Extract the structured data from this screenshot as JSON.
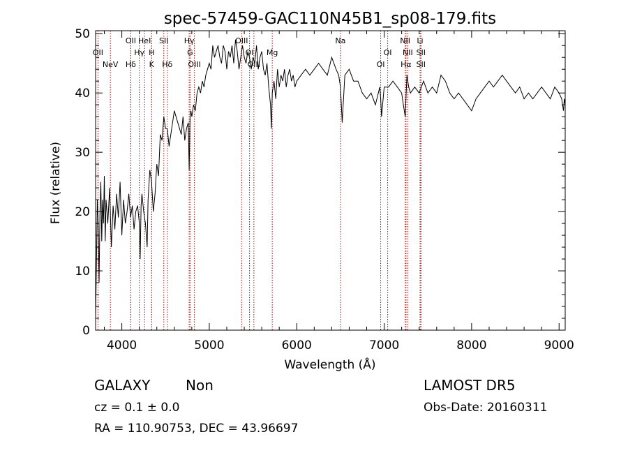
{
  "info": {
    "classification": "GALAXY",
    "subclass": "Non",
    "survey": "LAMOST DR5",
    "redshift": "cz = 0.1 ± 0.0",
    "obs_date": "Obs-Date: 20160311",
    "coords": "RA = 110.90753, DEC =  43.96697"
  },
  "chart_data": {
    "type": "line",
    "title": "spec-57459-GAC110N45B1_sp08-179.fits",
    "xlabel": "Wavelength (Å)",
    "ylabel": "Flux (relative)",
    "xlim": [
      3700,
      9070
    ],
    "ylim": [
      0,
      50.5
    ],
    "xticks": [
      4000,
      5000,
      6000,
      7000,
      8000,
      9000
    ],
    "yticks": [
      0,
      10,
      20,
      30,
      40,
      50
    ],
    "line_color": "#000000",
    "marker_color": "#a01010",
    "spectrum": {
      "x": [
        3700,
        3710,
        3720,
        3730,
        3740,
        3750,
        3760,
        3770,
        3780,
        3790,
        3800,
        3810,
        3820,
        3840,
        3860,
        3880,
        3900,
        3920,
        3940,
        3960,
        3980,
        4000,
        4020,
        4040,
        4060,
        4080,
        4100,
        4120,
        4140,
        4160,
        4180,
        4200,
        4210,
        4220,
        4230,
        4250,
        4270,
        4290,
        4300,
        4320,
        4340,
        4360,
        4380,
        4400,
        4420,
        4440,
        4460,
        4480,
        4500,
        4520,
        4540,
        4560,
        4580,
        4600,
        4620,
        4640,
        4660,
        4680,
        4700,
        4720,
        4740,
        4760,
        4770,
        4780,
        4790,
        4800,
        4820,
        4840,
        4860,
        4880,
        4900,
        4920,
        4940,
        4960,
        4980,
        5000,
        5020,
        5040,
        5060,
        5080,
        5100,
        5120,
        5140,
        5160,
        5180,
        5200,
        5220,
        5240,
        5260,
        5280,
        5300,
        5320,
        5340,
        5360,
        5380,
        5400,
        5420,
        5440,
        5460,
        5480,
        5500,
        5520,
        5540,
        5560,
        5580,
        5600,
        5620,
        5640,
        5660,
        5680,
        5700,
        5710,
        5720,
        5740,
        5760,
        5780,
        5800,
        5820,
        5840,
        5860,
        5880,
        5900,
        5920,
        5940,
        5960,
        5980,
        6000,
        6050,
        6100,
        6150,
        6200,
        6250,
        6300,
        6350,
        6400,
        6450,
        6480,
        6500,
        6510,
        6520,
        6550,
        6600,
        6650,
        6700,
        6750,
        6800,
        6850,
        6900,
        6950,
        6960,
        6970,
        7000,
        7050,
        7100,
        7150,
        7200,
        7220,
        7240,
        7260,
        7280,
        7300,
        7350,
        7400,
        7450,
        7500,
        7550,
        7600,
        7650,
        7700,
        7750,
        7800,
        7850,
        7900,
        7950,
        8000,
        8050,
        8100,
        8150,
        8200,
        8250,
        8300,
        8350,
        8400,
        8450,
        8500,
        8550,
        8600,
        8650,
        8700,
        8750,
        8800,
        8850,
        8900,
        8950,
        9000,
        9030,
        9050,
        9060,
        9070
      ],
      "y": [
        2,
        12,
        22,
        18,
        8,
        20,
        25,
        15,
        22,
        18,
        26,
        15,
        22,
        18,
        24,
        14,
        21,
        17,
        23,
        19,
        25,
        16,
        22,
        18,
        20,
        23,
        19,
        21,
        17,
        20,
        21,
        18,
        12,
        21,
        23,
        20,
        18,
        14,
        22,
        27,
        25,
        20,
        23,
        28,
        26,
        33,
        32,
        36,
        34,
        34,
        31,
        33,
        35,
        37,
        36,
        35,
        34,
        33,
        36,
        32,
        34,
        35,
        27,
        36,
        37,
        36,
        38,
        37,
        40,
        41,
        40,
        42,
        41,
        43,
        44,
        45,
        44,
        48,
        46,
        47,
        48,
        46,
        45,
        48,
        47,
        44,
        47,
        46,
        48,
        45,
        49,
        47,
        44,
        46,
        48,
        46,
        45,
        47,
        46,
        44,
        46,
        45,
        48,
        44,
        46,
        47,
        44,
        43,
        45,
        41,
        38,
        34,
        40,
        42,
        39,
        44,
        41,
        43,
        42,
        44,
        41,
        43,
        44,
        42,
        43,
        41,
        42,
        43,
        44,
        43,
        44,
        45,
        44,
        43,
        46,
        44,
        43,
        41,
        38,
        35,
        43,
        44,
        42,
        42,
        40,
        39,
        40,
        38,
        41,
        39,
        36,
        41,
        41,
        42,
        41,
        40,
        38,
        36,
        43,
        41,
        40,
        41,
        40,
        42,
        40,
        41,
        40,
        43,
        42,
        40,
        39,
        40,
        39,
        38,
        37,
        39,
        40,
        41,
        42,
        41,
        42,
        43,
        42,
        41,
        40,
        41,
        39,
        40,
        39,
        40,
        41,
        40,
        39,
        41,
        40,
        39,
        37,
        39,
        38
      ]
    },
    "lines": [
      {
        "w": 3727,
        "label": "OII",
        "row": 2
      },
      {
        "w": 3869,
        "label": "NeV",
        "row": 3
      },
      {
        "w": 4102,
        "label": "OII",
        "row": 1
      },
      {
        "w": 4102,
        "label": "Hδ",
        "row": 3
      },
      {
        "w": 4200,
        "label": "Hγ",
        "row": 2
      },
      {
        "w": 4260,
        "label": "HeI",
        "row": 1
      },
      {
        "w": 4340,
        "label": "H",
        "row": 2
      },
      {
        "w": 4340,
        "label": "K",
        "row": 3
      },
      {
        "w": 4480,
        "label": "SII",
        "row": 1
      },
      {
        "w": 4520,
        "label": "Hδ",
        "row": 3
      },
      {
        "w": 4770,
        "label": "Hγ",
        "row": 1
      },
      {
        "w": 4780,
        "label": "G",
        "row": 2
      },
      {
        "w": 4830,
        "label": "OIII",
        "row": 3
      },
      {
        "w": 5370,
        "label": "OIII",
        "row": 1
      },
      {
        "w": 5460,
        "label": "OI",
        "row": 2
      },
      {
        "w": 5510,
        "label": "OIII",
        "row": 3
      },
      {
        "w": 5720,
        "label": "Mg",
        "row": 2
      },
      {
        "w": 6500,
        "label": "Na",
        "row": 1
      },
      {
        "w": 6960,
        "label": "OI",
        "row": 3
      },
      {
        "w": 7040,
        "label": "OI",
        "row": 2
      },
      {
        "w": 7240,
        "label": "NII",
        "row": 1
      },
      {
        "w": 7270,
        "label": "NII",
        "row": 2
      },
      {
        "w": 7250,
        "label": "Hα",
        "row": 3
      },
      {
        "w": 7410,
        "label": "Li",
        "row": 1
      },
      {
        "w": 7420,
        "label": "SII",
        "row": 2
      },
      {
        "w": 7420,
        "label": "SII",
        "row": 3
      }
    ]
  }
}
